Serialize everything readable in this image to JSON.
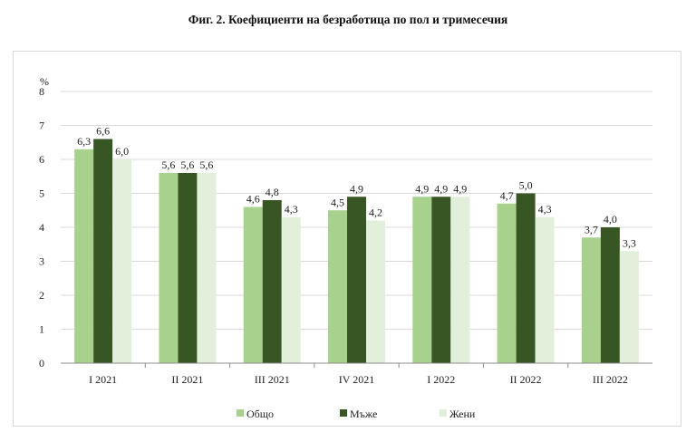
{
  "chart_data": {
    "type": "bar",
    "title": "Фиг. 2. Коефициенти на безработица по пол и тримесечия",
    "unit_label": "%",
    "categories": [
      "I 2021",
      "II 2021",
      "III 2021",
      "IV 2021",
      "I 2022",
      "II 2022",
      "III 2022"
    ],
    "series": [
      {
        "name": "Общо",
        "color": "#a9d18e",
        "values": [
          6.3,
          5.6,
          4.6,
          4.5,
          4.9,
          4.7,
          3.7
        ],
        "labels": [
          "6,3",
          "5,6",
          "4,6",
          "4,5",
          "4,9",
          "4,7",
          "3,7"
        ]
      },
      {
        "name": "Мъже",
        "color": "#375623",
        "values": [
          6.6,
          5.6,
          4.8,
          4.9,
          4.9,
          5.0,
          4.0
        ],
        "labels": [
          "6,6",
          "5,6",
          "4,8",
          "4,9",
          "4,9",
          "5,0",
          "4,0"
        ]
      },
      {
        "name": "Жени",
        "color": "#e2efda",
        "values": [
          6.0,
          5.6,
          4.3,
          4.2,
          4.9,
          4.3,
          3.3
        ],
        "labels": [
          "6,0",
          "5,6",
          "4,3",
          "4,2",
          "4,9",
          "4,3",
          "3,3"
        ]
      }
    ],
    "ylim": [
      0,
      8
    ],
    "yticks": [
      "0",
      "1",
      "2",
      "3",
      "4",
      "5",
      "6",
      "7",
      "8"
    ],
    "grid": true,
    "legend_position": "bottom"
  }
}
